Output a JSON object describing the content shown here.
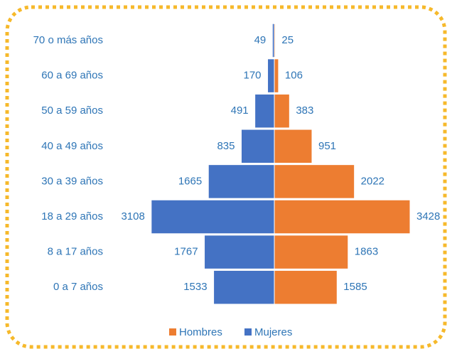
{
  "chart_data": {
    "type": "pyramid",
    "categories": [
      "70 o más años",
      "60 a 69 años",
      "50 a 59 años",
      "40 a 49 años",
      "30 a 39 años",
      "18 a 29 años",
      "8 a 17 años",
      "0 a 7 años"
    ],
    "series": [
      {
        "name": "Hombres",
        "color": "#ed7d31",
        "values": [
          25,
          106,
          383,
          951,
          2022,
          3428,
          1863,
          1585
        ]
      },
      {
        "name": "Mujeres",
        "color": "#4472c4",
        "values": [
          49,
          170,
          491,
          835,
          1665,
          3108,
          1767,
          1533
        ]
      }
    ]
  }
}
